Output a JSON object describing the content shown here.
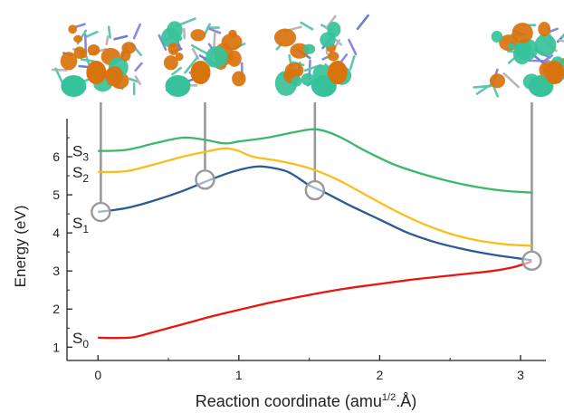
{
  "chart_data": {
    "type": "line",
    "xlabel": "Reaction coordinate (amu",
    "xlabel_sup": "1/2",
    "xlabel_end": ".Å)",
    "ylabel": "Energy (eV)",
    "xlim": [
      -0.22,
      3.18
    ],
    "ylim": [
      0.65,
      7.0
    ],
    "x_ticks": [
      0,
      1,
      2,
      3
    ],
    "x_tick_labels": [
      "0",
      "1",
      "2",
      "3"
    ],
    "y_ticks": [
      1,
      2,
      3,
      4,
      5,
      6
    ],
    "y_tick_labels": [
      "1",
      "2",
      "3",
      "4",
      "5",
      "6"
    ],
    "grid": false,
    "series": [
      {
        "name": "S",
        "subscript": "0",
        "color": "#e8160f",
        "points": [
          [
            0,
            1.25
          ],
          [
            0.1,
            1.24
          ],
          [
            0.25,
            1.26
          ],
          [
            0.4,
            1.4
          ],
          [
            0.6,
            1.6
          ],
          [
            0.8,
            1.8
          ],
          [
            1.0,
            1.98
          ],
          [
            1.2,
            2.15
          ],
          [
            1.4,
            2.3
          ],
          [
            1.6,
            2.44
          ],
          [
            1.8,
            2.56
          ],
          [
            2.0,
            2.66
          ],
          [
            2.2,
            2.76
          ],
          [
            2.4,
            2.84
          ],
          [
            2.6,
            2.92
          ],
          [
            2.8,
            3.0
          ],
          [
            2.95,
            3.1
          ],
          [
            3.08,
            3.25
          ]
        ]
      },
      {
        "name": "S",
        "subscript": "1",
        "color": "#2a5b94",
        "points": [
          [
            0,
            4.55
          ],
          [
            0.2,
            4.65
          ],
          [
            0.4,
            4.85
          ],
          [
            0.6,
            5.1
          ],
          [
            0.8,
            5.4
          ],
          [
            0.95,
            5.6
          ],
          [
            1.1,
            5.73
          ],
          [
            1.2,
            5.73
          ],
          [
            1.35,
            5.6
          ],
          [
            1.5,
            5.25
          ],
          [
            1.6,
            5.08
          ],
          [
            1.8,
            4.7
          ],
          [
            2.0,
            4.35
          ],
          [
            2.2,
            4.0
          ],
          [
            2.4,
            3.75
          ],
          [
            2.6,
            3.57
          ],
          [
            2.8,
            3.43
          ],
          [
            2.95,
            3.35
          ],
          [
            3.08,
            3.28
          ]
        ]
      },
      {
        "name": "S",
        "subscript": "2",
        "color": "#fbbd19",
        "points": [
          [
            0,
            5.6
          ],
          [
            0.2,
            5.62
          ],
          [
            0.4,
            5.8
          ],
          [
            0.6,
            6.0
          ],
          [
            0.75,
            6.12
          ],
          [
            0.9,
            6.22
          ],
          [
            1.0,
            6.15
          ],
          [
            1.1,
            6.0
          ],
          [
            1.3,
            5.88
          ],
          [
            1.5,
            5.7
          ],
          [
            1.7,
            5.4
          ],
          [
            1.9,
            5.0
          ],
          [
            2.1,
            4.6
          ],
          [
            2.3,
            4.25
          ],
          [
            2.5,
            3.98
          ],
          [
            2.7,
            3.8
          ],
          [
            2.9,
            3.7
          ],
          [
            3.08,
            3.66
          ]
        ]
      },
      {
        "name": "S",
        "subscript": "3",
        "color": "#3cb86b",
        "points": [
          [
            0,
            6.15
          ],
          [
            0.2,
            6.18
          ],
          [
            0.4,
            6.35
          ],
          [
            0.6,
            6.5
          ],
          [
            0.75,
            6.45
          ],
          [
            0.9,
            6.35
          ],
          [
            1.0,
            6.4
          ],
          [
            1.2,
            6.5
          ],
          [
            1.4,
            6.65
          ],
          [
            1.55,
            6.72
          ],
          [
            1.7,
            6.55
          ],
          [
            1.9,
            6.15
          ],
          [
            2.1,
            5.8
          ],
          [
            2.3,
            5.55
          ],
          [
            2.5,
            5.35
          ],
          [
            2.7,
            5.2
          ],
          [
            2.9,
            5.1
          ],
          [
            3.08,
            5.06
          ]
        ]
      }
    ],
    "highlight_points": [
      [
        0.02,
        4.55
      ],
      [
        0.76,
        5.4
      ],
      [
        1.54,
        5.12
      ],
      [
        3.08,
        3.27
      ]
    ],
    "molecule_snapshots": [
      "snapshot-1",
      "snapshot-2",
      "snapshot-3",
      "snapshot-4"
    ],
    "colors": {
      "axis": "#222222",
      "marker": "#999999",
      "lobe_orange": "#d9730d",
      "lobe_green": "#36c29a"
    }
  }
}
